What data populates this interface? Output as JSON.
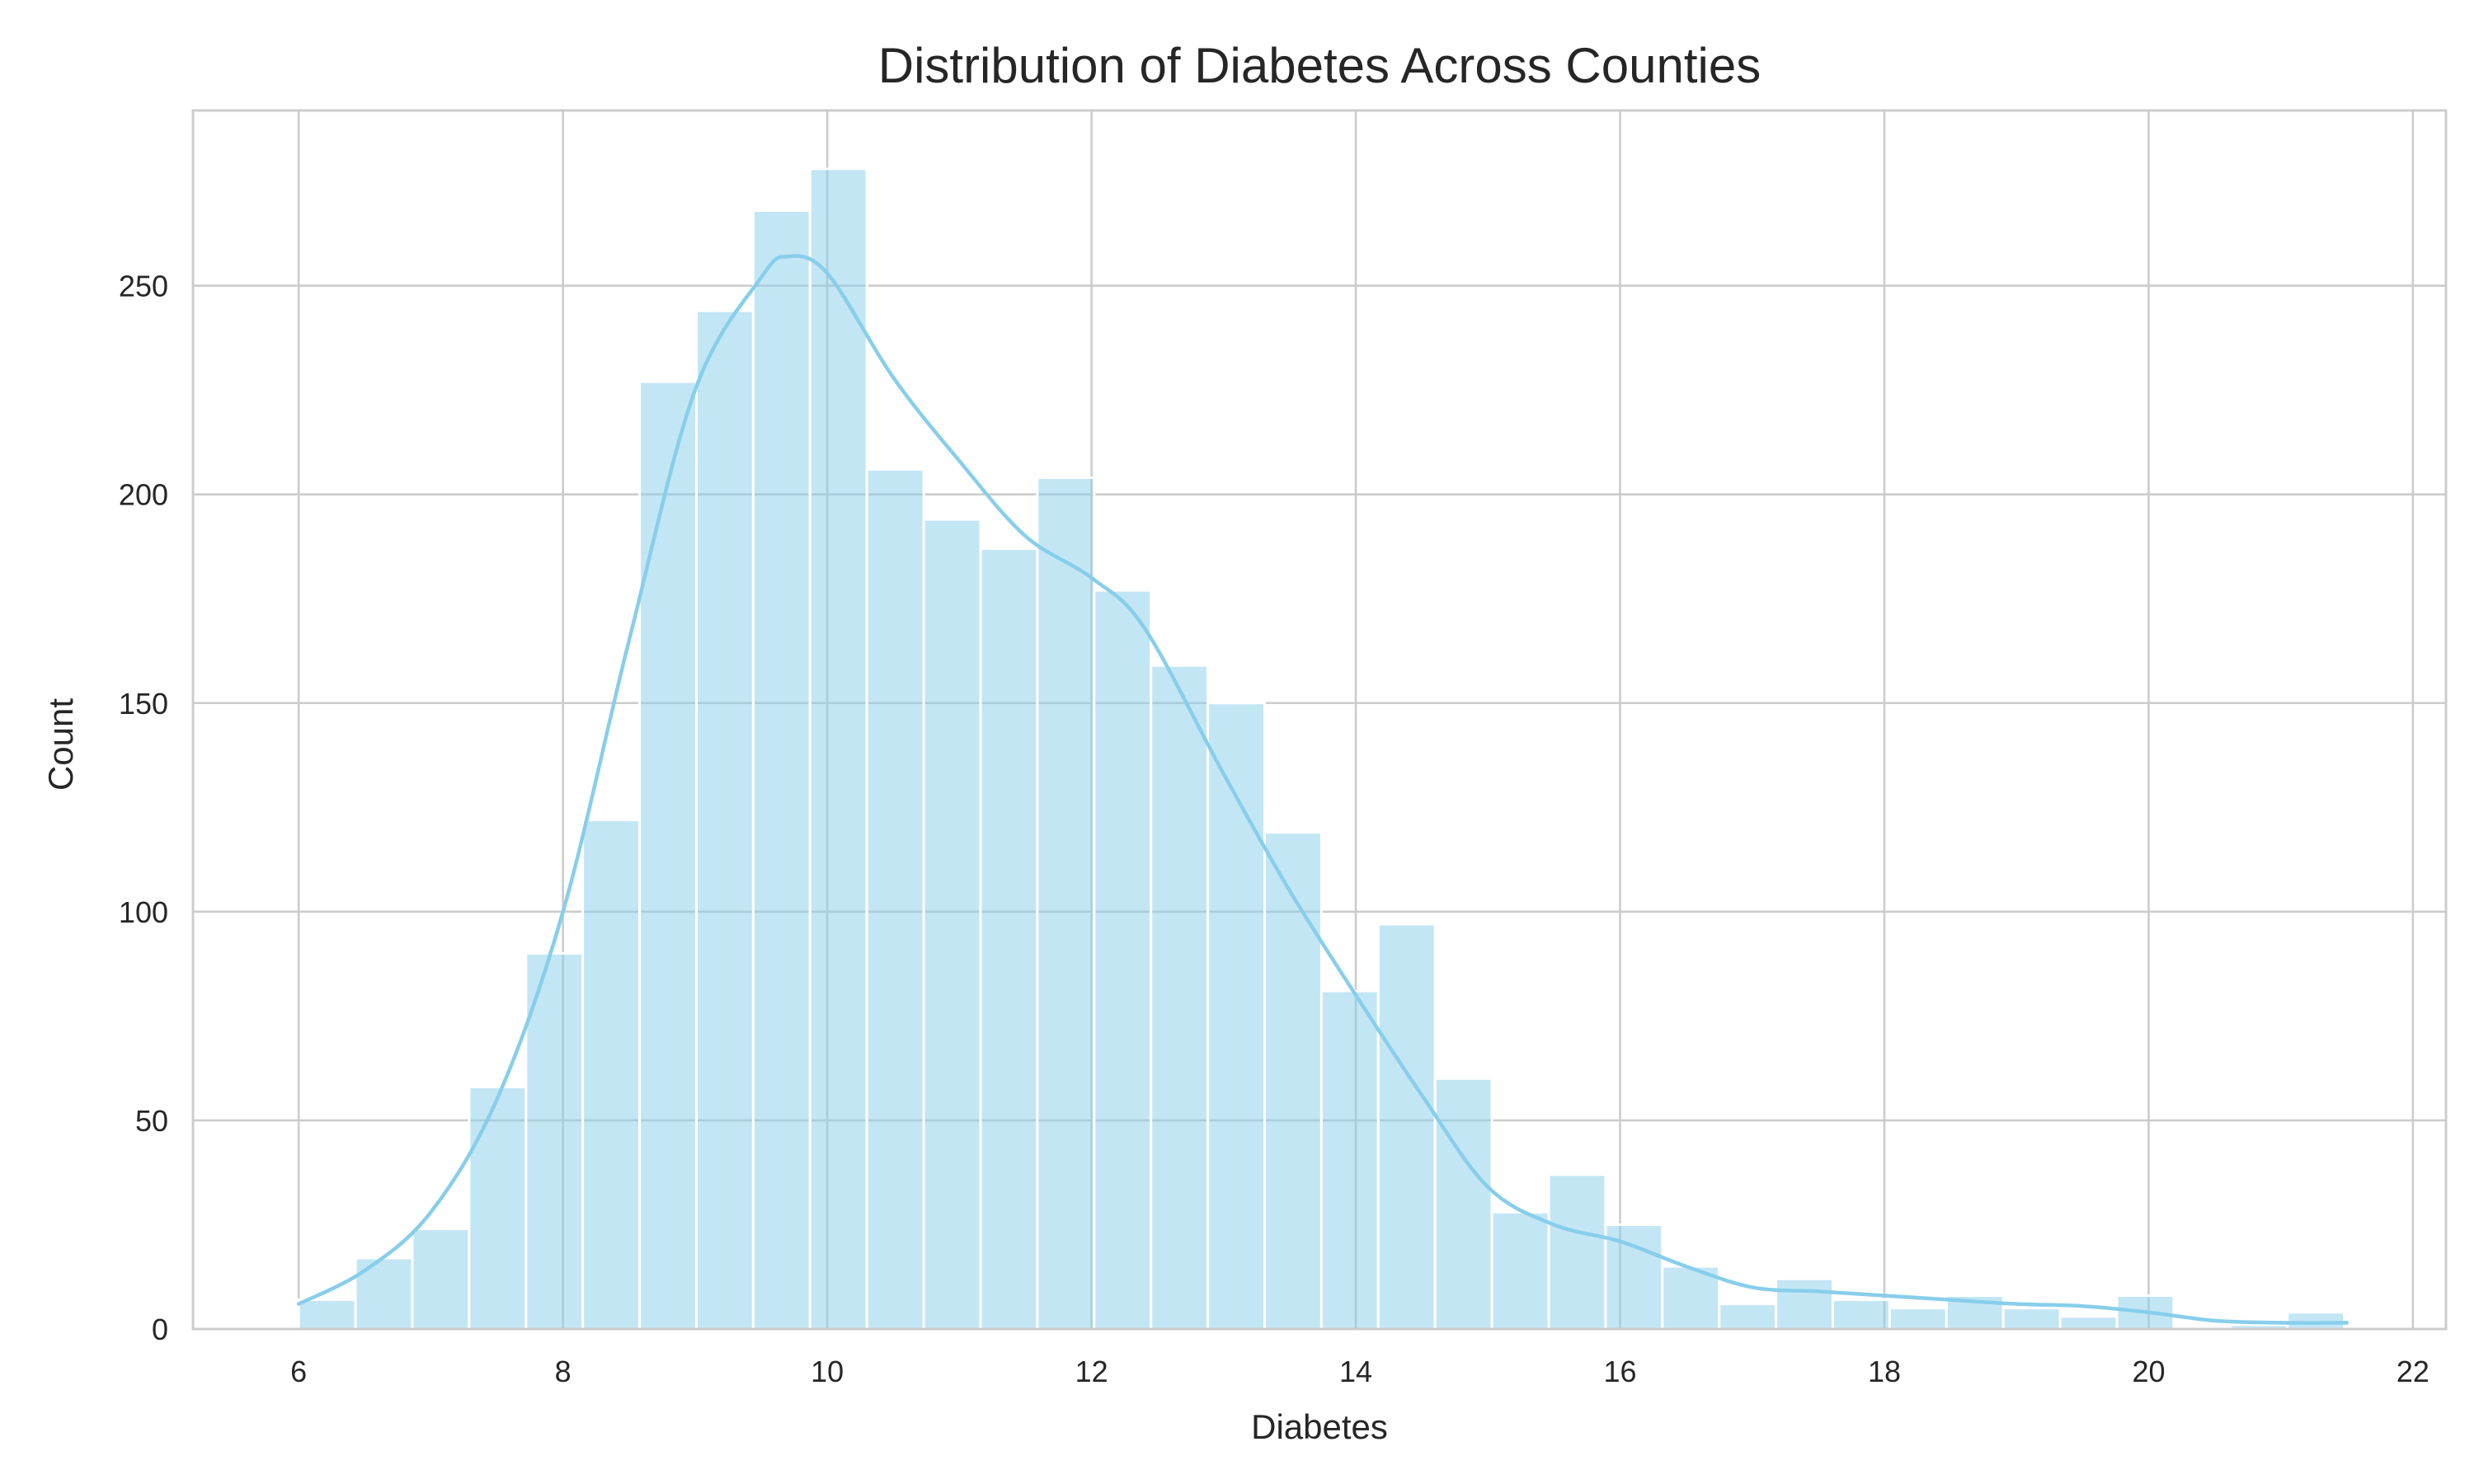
{
  "chart_data": {
    "type": "bar",
    "subtype": "histogram",
    "title": "Distribution of Diabetes Across Counties",
    "xlabel": "Diabetes",
    "ylabel": "Count",
    "xlim": [
      5.2,
      22.25
    ],
    "ylim": [
      0,
      292
    ],
    "xticks": [
      6,
      8,
      10,
      12,
      14,
      16,
      18,
      20,
      22
    ],
    "yticks": [
      0,
      50,
      100,
      150,
      200,
      250
    ],
    "grid": true,
    "legend": "none",
    "bar_color": "#87ceeb",
    "kde_color": "#87ceeb",
    "bin_start": 6.0,
    "bin_width": 0.43,
    "counts": [
      7,
      17,
      24,
      58,
      90,
      122,
      227,
      244,
      268,
      278,
      206,
      194,
      187,
      204,
      177,
      159,
      150,
      119,
      81,
      97,
      60,
      28,
      37,
      25,
      15,
      6,
      12,
      7,
      5,
      8,
      5,
      3,
      8,
      0,
      1,
      4
    ],
    "kde": {
      "x": [
        6.0,
        6.5,
        7.0,
        7.5,
        8.0,
        8.5,
        9.0,
        9.5,
        9.7,
        10.0,
        10.5,
        11.0,
        11.5,
        12.0,
        12.4,
        13.0,
        13.5,
        14.0,
        14.5,
        15.0,
        15.5,
        16.0,
        16.5,
        17.0,
        17.5,
        18.0,
        18.5,
        19.0,
        19.5,
        20.0,
        20.5,
        21.0,
        21.5
      ],
      "y": [
        6,
        14,
        28,
        55,
        100,
        165,
        225,
        252,
        257,
        253,
        228,
        208,
        190,
        180,
        168,
        133,
        105,
        80,
        56,
        34,
        25,
        21,
        15,
        10,
        9,
        8,
        7,
        6,
        5.5,
        4,
        2,
        1.5,
        1.5
      ]
    }
  }
}
